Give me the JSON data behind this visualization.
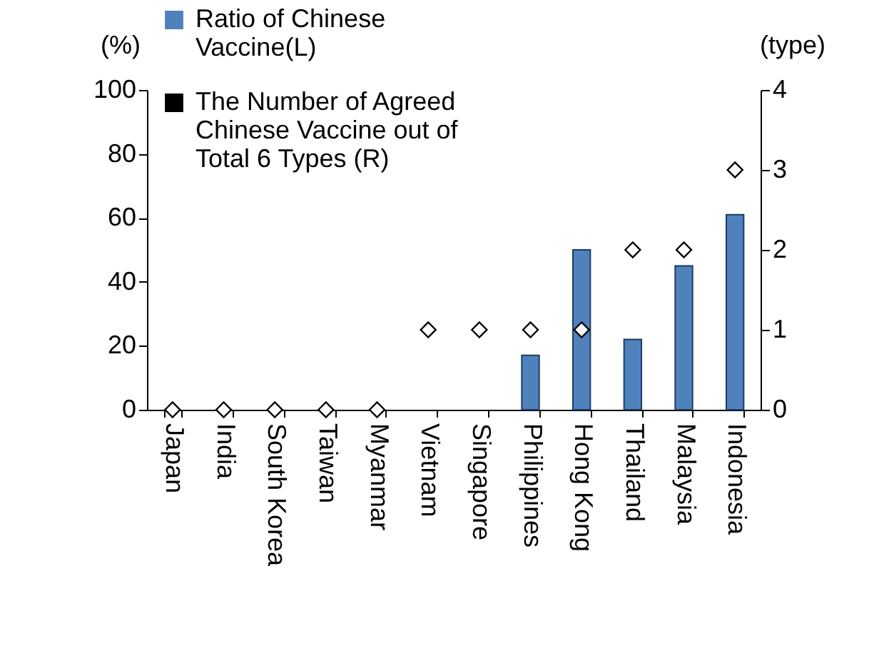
{
  "chart_data": {
    "type": "bar",
    "ylabel": "(%)",
    "y2label": "(type)",
    "categories": [
      "Japan",
      "India",
      "South Korea",
      "Taiwan",
      "Myanmar",
      "Vietnam",
      "Singapore",
      "Philippines",
      "Hong Kong",
      "Thailand",
      "Malaysia",
      "Indonesia"
    ],
    "series": [
      {
        "name": "Ratio of Chinese Vaccine(L)",
        "color": "#4f81bd",
        "values": [
          0,
          0,
          0,
          0,
          0,
          0,
          0,
          17,
          50,
          22,
          45,
          61
        ]
      },
      {
        "name": "The Number of Agreed Chinese Vaccine out of Total 6 Types (R)",
        "type": "scatter",
        "axis": "y2",
        "color": "#000000",
        "values": [
          0,
          0,
          0,
          0,
          0,
          1,
          1,
          1,
          1,
          2,
          2,
          3
        ]
      }
    ],
    "ylim": [
      0,
      100
    ],
    "yticks": [
      0,
      20,
      40,
      60,
      80,
      100
    ],
    "y2lim": [
      0,
      4
    ],
    "y2ticks": [
      0,
      1,
      2,
      3,
      4
    ],
    "grid": false,
    "legend": "top left",
    "marker": "diamond"
  }
}
